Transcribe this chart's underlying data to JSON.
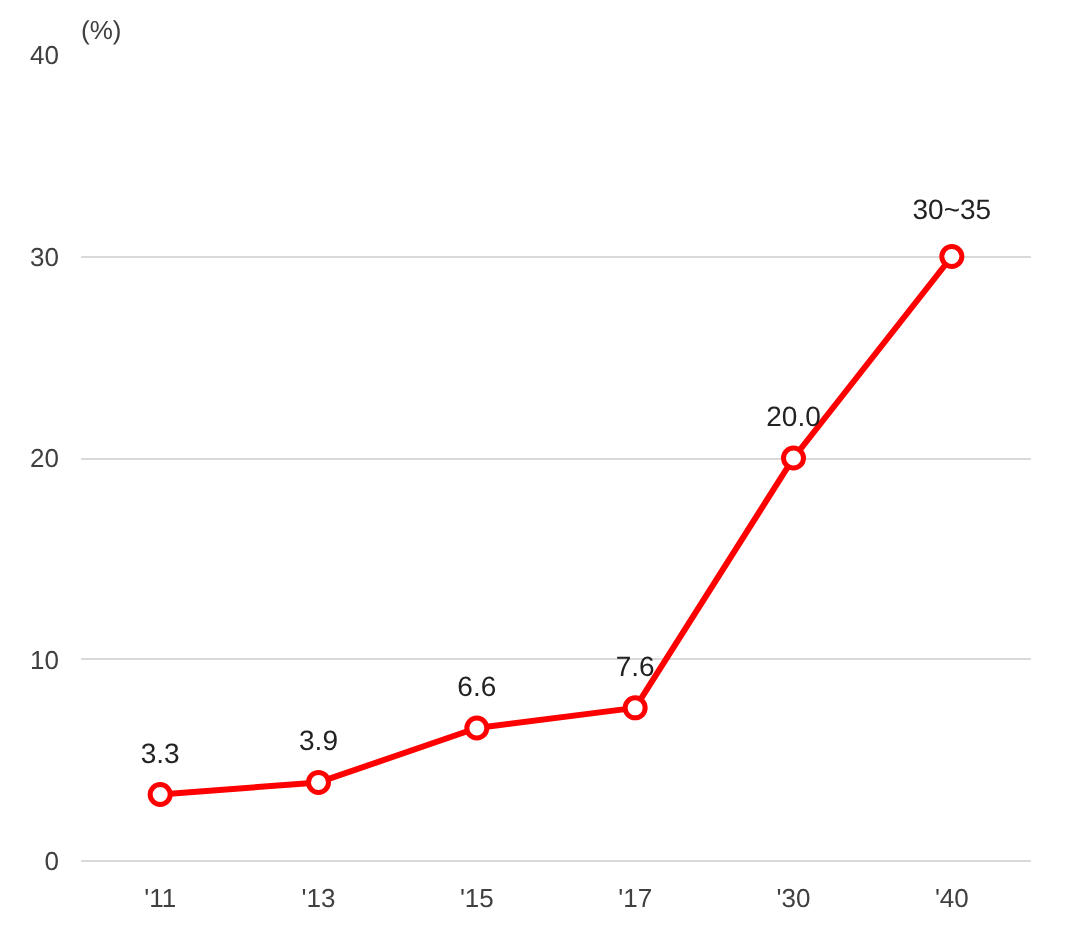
{
  "chart_data": {
    "type": "line",
    "ylabel": "(%)",
    "categories": [
      "'11",
      "'13",
      "'15",
      "'17",
      "'30",
      "'40"
    ],
    "series": [
      {
        "color": "#ff0000",
        "values": [
          3.3,
          3.9,
          6.6,
          7.6,
          20.0,
          30
        ],
        "value_labels": [
          "3.3",
          "3.9",
          "6.6",
          "7.6",
          "20.0",
          "30~35"
        ]
      }
    ],
    "ylim": [
      0,
      40
    ],
    "yticks": [
      0,
      10,
      20,
      30,
      40
    ],
    "grid": "y",
    "marker": "circle",
    "line_style": "solid"
  }
}
